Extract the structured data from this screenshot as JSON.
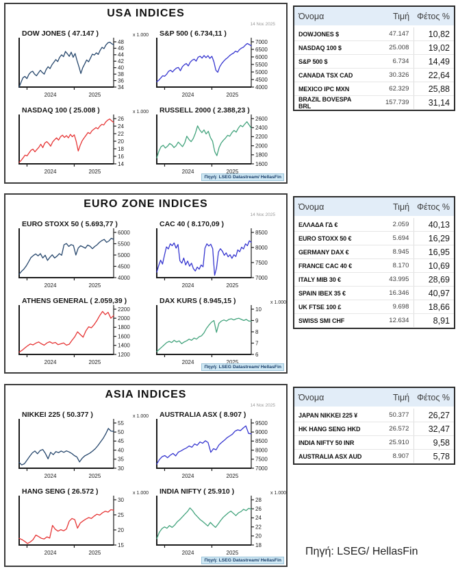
{
  "page": {
    "source_note": "Πηγή: LSEG/ HellasFin"
  },
  "colors": {
    "navy": "#24456b",
    "blue": "#3434cf",
    "red": "#e63434",
    "green": "#42a37c",
    "axis": "#1a1a1a",
    "footer_bg": "#cfe8f4",
    "footer_text": "#173c69",
    "table_header_bg": "#e2edf8"
  },
  "panels": [
    {
      "id": "usa",
      "title": "USA INDICES",
      "date": "14 Νοε 2025",
      "source": "Πηγή: LSEG Datastream/ HellasFin",
      "chart_indices": [
        0,
        1,
        2,
        3
      ],
      "table": {
        "headers": [
          "Όνομα",
          "Τιμή",
          "Φέτος %"
        ],
        "rows": [
          [
            "DOWJONES $",
            "47.147",
            "10,82"
          ],
          [
            "NASDAQ 100 $",
            "25.008",
            "19,02"
          ],
          [
            "S&P 500 $",
            "6.734",
            "14,49"
          ],
          [
            "CANADA TSX CAD",
            "30.326",
            "22,64"
          ],
          [
            "MEXICO IPC MXN",
            "62.329",
            "25,88"
          ],
          [
            "BRAZIL BOVESPA BRL",
            "157.739",
            "31,14"
          ]
        ]
      }
    },
    {
      "id": "euro",
      "title": "EURO ZONE INDICES",
      "date": "14 Νοε 2025",
      "source": "Πηγή: LSEG Datastream/ HellasFin",
      "chart_indices": [
        4,
        5,
        6,
        7
      ],
      "table": {
        "headers": [
          "Όνομα",
          "Τιμή",
          "Φέτος %"
        ],
        "rows": [
          [
            "ΕΛΛΑΔΑ ΓΔ €",
            "2.059",
            "40,13"
          ],
          [
            "EURO STOXX 50 €",
            "5.694",
            "16,29"
          ],
          [
            "GERMANY DAX €",
            "8.945",
            "16,95"
          ],
          [
            "FRANCE CAC 40 €",
            "8.170",
            "10,69"
          ],
          [
            "ITALY MIB 30 €",
            "43.995",
            "28,69"
          ],
          [
            "SPAIN IBEX 35 €",
            "16.346",
            "40,97"
          ],
          [
            "UK FTSE 100 £",
            "9.698",
            "18,66"
          ],
          [
            "SWISS SMI CHF",
            "12.634",
            "8,91"
          ]
        ]
      }
    },
    {
      "id": "asia",
      "title": "ASIA INDICES",
      "date": "14 Νοε 2025",
      "source": "Πηγή: LSEG Datastream/ HellasFin",
      "chart_indices": [
        8,
        9,
        10,
        11
      ],
      "table": {
        "headers": [
          "Όνομα",
          "Τιμή",
          "Φέτος %"
        ],
        "rows": [
          [
            "JAPAN NIKKEI 225 ¥",
            "50.377",
            "26,27"
          ],
          [
            "HK HANG SENG HKD",
            "26.572",
            "32,47"
          ],
          [
            "INDIA NIFTY 50 INR",
            "25.910",
            "9,58"
          ],
          [
            "AUSTRALIA ASX AUD",
            "8.907",
            "5,78"
          ]
        ]
      }
    }
  ],
  "chart_data": [
    {
      "type": "line",
      "slug": "dow-jones",
      "title": "DOW JONES ( 47.147 )",
      "scale_label": "x 1.000",
      "color": "navy",
      "ylim": [
        34,
        48
      ],
      "yticks": [
        34,
        36,
        38,
        40,
        42,
        44,
        46,
        48
      ],
      "xticklabels": [
        "2024",
        "2025"
      ],
      "grid": false,
      "legend": false,
      "values": [
        34.0,
        35.5,
        36.9,
        37.3,
        36.6,
        37.9,
        38.6,
        38.9,
        38.0,
        37.5,
        38.4,
        39.2,
        38.5,
        38.0,
        39.4,
        40.3,
        39.7,
        40.9,
        41.7,
        42.5,
        41.9,
        43.2,
        44.0,
        43.4,
        45.0,
        44.3,
        43.5,
        44.8,
        43.2,
        44.4,
        42.2,
        40.3,
        38.2,
        40.0,
        41.2,
        42.4,
        41.8,
        43.0,
        44.2,
        43.9,
        44.6,
        44.1,
        45.4,
        46.3,
        45.9,
        47.0,
        47.7,
        47.9,
        47.4,
        47.1
      ]
    },
    {
      "type": "line",
      "slug": "sp-500",
      "title": "S&P 500 ( 6.734,11 )",
      "scale_label": "",
      "color": "blue",
      "ylim": [
        4000,
        7000
      ],
      "yticks": [
        4000,
        4500,
        5000,
        5500,
        6000,
        6500,
        7000
      ],
      "xticklabels": [
        "2024",
        "2025"
      ],
      "grid": false,
      "legend": false,
      "values": [
        4350,
        4450,
        4600,
        4750,
        4720,
        4850,
        5050,
        5120,
        5000,
        5150,
        5260,
        5300,
        5080,
        5350,
        5480,
        5560,
        5400,
        5650,
        5780,
        5850,
        5720,
        5980,
        6050,
        5920,
        6090,
        5950,
        6080,
        5900,
        6040,
        5680,
        5120,
        4980,
        5350,
        5560,
        5720,
        5850,
        5950,
        6080,
        6180,
        6250,
        6380,
        6320,
        6480,
        6580,
        6640,
        6780,
        6890,
        6820,
        6734
      ]
    },
    {
      "type": "line",
      "slug": "nasdaq-100",
      "title": "NASDAQ 100 ( 25.008 )",
      "scale_label": "x 1.000",
      "color": "red",
      "ylim": [
        14,
        26
      ],
      "yticks": [
        14,
        16,
        18,
        20,
        22,
        24,
        26
      ],
      "xticklabels": [
        "2024",
        "2025"
      ],
      "grid": false,
      "legend": false,
      "values": [
        14.4,
        14.9,
        15.6,
        16.3,
        16.1,
        16.9,
        17.6,
        17.9,
        17.2,
        17.8,
        18.4,
        19.2,
        18.3,
        19.5,
        19.9,
        19.4,
        18.7,
        19.8,
        20.4,
        20.9,
        20.3,
        21.2,
        21.6,
        21.0,
        21.5,
        20.9,
        21.8,
        21.2,
        21.7,
        19.9,
        17.4,
        18.9,
        20.1,
        20.9,
        21.6,
        22.3,
        22.0,
        22.8,
        23.2,
        23.6,
        23.3,
        24.0,
        24.5,
        24.3,
        25.1,
        25.6,
        25.9,
        25.4,
        25.0
      ]
    },
    {
      "type": "line",
      "slug": "russell-2000",
      "title": "RUSSELL 2000 ( 2.388,23 )",
      "scale_label": "",
      "color": "green",
      "ylim": [
        1600,
        2600
      ],
      "yticks": [
        1600,
        1800,
        2000,
        2200,
        2400,
        2600
      ],
      "xticklabels": [
        "2024",
        "2025"
      ],
      "grid": false,
      "legend": false,
      "values": [
        1730,
        1880,
        1980,
        2010,
        1950,
        1990,
        2050,
        2020,
        1960,
        2000,
        2080,
        2030,
        1980,
        2060,
        2210,
        2140,
        2090,
        2160,
        2280,
        2440,
        2350,
        2290,
        2350,
        2260,
        2320,
        2180,
        2100,
        1870,
        1780,
        1960,
        2060,
        2120,
        2170,
        2230,
        2210,
        2290,
        2340,
        2300,
        2390,
        2450,
        2420,
        2480,
        2530,
        2460,
        2388
      ]
    },
    {
      "type": "line",
      "slug": "euro-stoxx-50",
      "title": "EURO STOXX 50 ( 5.693,77 )",
      "scale_label": "",
      "color": "navy",
      "ylim": [
        4000,
        6000
      ],
      "yticks": [
        4000,
        4500,
        5000,
        5500,
        6000
      ],
      "xticklabels": [
        "2024",
        "2025"
      ],
      "grid": false,
      "legend": false,
      "values": [
        4150,
        4280,
        4380,
        4520,
        4700,
        4890,
        4980,
        5050,
        4960,
        5060,
        4870,
        4990,
        4760,
        4900,
        5010,
        4870,
        4950,
        5060,
        4990,
        5450,
        5510,
        5380,
        5460,
        5420,
        5000,
        5310,
        5410,
        5360,
        5300,
        5440,
        5390,
        5280,
        5380,
        5450,
        5560,
        5640,
        5690,
        5560,
        5620,
        5740,
        5694
      ]
    },
    {
      "type": "line",
      "slug": "cac-40",
      "title": "CAC 40 ( 8.170,09 )",
      "scale_label": "",
      "color": "blue",
      "ylim": [
        7000,
        8500
      ],
      "yticks": [
        7000,
        7500,
        8000,
        8500
      ],
      "xticklabels": [
        "2024",
        "2025"
      ],
      "grid": false,
      "legend": false,
      "values": [
        7180,
        7400,
        7580,
        7450,
        7750,
        8020,
        7950,
        8120,
        8060,
        8150,
        7980,
        8100,
        7560,
        7480,
        7650,
        7420,
        7550,
        7380,
        7480,
        7300,
        7220,
        7350,
        7280,
        7420,
        7360,
        7980,
        8120,
        8050,
        8110,
        7960,
        7080,
        7320,
        7850,
        7960,
        7880,
        7740,
        7820,
        7690,
        7760,
        7640,
        7760,
        7700,
        7920,
        7860,
        8010,
        7950,
        8120,
        8060,
        8220,
        8170
      ]
    },
    {
      "type": "line",
      "slug": "athens-general",
      "title": "ATHENS GENERAL ( 2.059,39 )",
      "scale_label": "",
      "color": "red",
      "ylim": [
        1200,
        2200
      ],
      "yticks": [
        1200,
        1400,
        1600,
        1800,
        2000,
        2200
      ],
      "xticklabels": [
        "2024",
        "2025"
      ],
      "grid": false,
      "legend": false,
      "values": [
        1250,
        1290,
        1340,
        1390,
        1430,
        1410,
        1450,
        1475,
        1435,
        1405,
        1455,
        1480,
        1445,
        1465,
        1415,
        1435,
        1455,
        1405,
        1425,
        1510,
        1590,
        1700,
        1640,
        1580,
        1720,
        1810,
        1790,
        1860,
        1950,
        2060,
        2150,
        2080,
        2130,
        2000,
        2059
      ]
    },
    {
      "type": "line",
      "slug": "dax-kurs",
      "title": "DAX KURS ( 8.945,15 )",
      "scale_label": "x 1.000",
      "color": "green",
      "ylim": [
        6,
        10
      ],
      "yticks": [
        6,
        7,
        8,
        9,
        10
      ],
      "xticklabels": [
        "2024",
        "2025"
      ],
      "grid": false,
      "legend": false,
      "values": [
        6.25,
        6.45,
        6.65,
        6.85,
        7.05,
        7.15,
        7.05,
        7.25,
        7.1,
        7.2,
        6.95,
        7.1,
        7.2,
        7.35,
        7.25,
        7.45,
        7.35,
        7.55,
        7.65,
        7.9,
        8.3,
        8.6,
        8.85,
        9.0,
        7.95,
        8.75,
        8.95,
        9.05,
        8.95,
        9.1,
        9.15,
        9.05,
        9.15,
        9.2,
        9.1,
        9.0,
        9.1,
        8.95,
        8.945
      ]
    },
    {
      "type": "line",
      "slug": "nikkei-225",
      "title": "NIKKEI 225 ( 50.377 )",
      "scale_label": "x 1.000",
      "color": "navy",
      "ylim": [
        30,
        55
      ],
      "yticks": [
        30,
        35,
        40,
        45,
        50,
        55
      ],
      "xticklabels": [
        "2024",
        "2025"
      ],
      "grid": false,
      "legend": false,
      "values": [
        33.2,
        31.8,
        32.5,
        34.5,
        36.5,
        38.5,
        39.5,
        38.0,
        39.8,
        40.3,
        38.2,
        35.2,
        38.8,
        37.5,
        39.2,
        38.6,
        39.5,
        38.8,
        39.6,
        39.0,
        38.2,
        37.0,
        36.2,
        33.5,
        35.5,
        36.8,
        37.6,
        38.4,
        39.5,
        40.8,
        42.5,
        44.5,
        46.5,
        49.0,
        52.0,
        50.5,
        50.38
      ]
    },
    {
      "type": "line",
      "slug": "australia-asx",
      "title": "AUSTRALIA ASX ( 8.907 )",
      "scale_label": "",
      "color": "blue",
      "ylim": [
        7000,
        9500
      ],
      "yticks": [
        7000,
        7500,
        8000,
        8500,
        9000,
        9500
      ],
      "xticklabels": [
        "2024",
        "2025"
      ],
      "grid": false,
      "legend": false,
      "values": [
        7230,
        7480,
        7640,
        7700,
        7580,
        7720,
        7820,
        7680,
        7890,
        7960,
        8050,
        8120,
        8230,
        8160,
        8340,
        8270,
        8450,
        8380,
        8520,
        8420,
        7880,
        8080,
        8020,
        8280,
        8420,
        8540,
        8680,
        8780,
        8880,
        9050,
        9120,
        9080,
        9220,
        9340,
        8920,
        8907
      ]
    },
    {
      "type": "line",
      "slug": "hang-seng",
      "title": "HANG SENG ( 26.572 )",
      "scale_label": "x 1.000",
      "color": "red",
      "ylim": [
        15,
        30
      ],
      "yticks": [
        15,
        20,
        25,
        30
      ],
      "xticklabels": [
        "2024",
        "2025"
      ],
      "grid": false,
      "legend": false,
      "values": [
        17.2,
        16.8,
        16.2,
        15.5,
        16.0,
        16.8,
        18.3,
        17.8,
        17.2,
        17.0,
        17.7,
        17.3,
        21.5,
        20.2,
        19.6,
        20.1,
        19.7,
        20.3,
        22.9,
        23.8,
        23.4,
        20.6,
        22.3,
        23.0,
        23.6,
        24.1,
        23.8,
        24.6,
        25.2,
        24.9,
        25.7,
        26.2,
        25.9,
        26.7,
        26.572
      ]
    },
    {
      "type": "line",
      "slug": "india-nifty",
      "title": "INDIA NIFTY ( 25.910 )",
      "scale_label": "x 1.000",
      "color": "green",
      "ylim": [
        18,
        28
      ],
      "yticks": [
        18,
        20,
        22,
        24,
        26,
        28
      ],
      "xticklabels": [
        "2024",
        "2025"
      ],
      "grid": false,
      "legend": false,
      "values": [
        19.4,
        20.8,
        21.6,
        22.0,
        21.7,
        22.3,
        21.9,
        22.4,
        23.1,
        23.6,
        24.2,
        24.8,
        25.4,
        26.2,
        25.6,
        24.8,
        24.2,
        23.6,
        23.2,
        22.7,
        22.2,
        23.0,
        22.4,
        21.9,
        22.6,
        23.4,
        24.1,
        24.6,
        25.1,
        25.5,
        25.0,
        24.5,
        25.1,
        25.4,
        25.9,
        25.6,
        26.1,
        25.91
      ]
    }
  ]
}
